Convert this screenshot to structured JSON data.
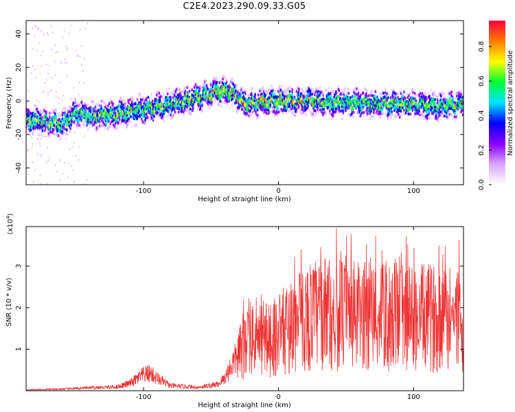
{
  "title": "C2E4.2023.290.09.33.G05",
  "chart_data": [
    {
      "type": "heatmap",
      "panel": "spectrogram",
      "xlabel": "Height of straight line (km)",
      "ylabel": "Frequency (Hz)",
      "xlim": [
        -187,
        137
      ],
      "ylim": [
        -50,
        48
      ],
      "xticks": [
        -100,
        0,
        100
      ],
      "xtick_labels": [
        "-100",
        "0",
        "100"
      ],
      "yticks": [
        -40,
        -20,
        0,
        20,
        40
      ],
      "ytick_labels": [
        "-40",
        "-20",
        "0",
        "20",
        "40"
      ],
      "ridge": {
        "x": [
          -187,
          -160,
          -150,
          -140,
          -120,
          -100,
          -80,
          -60,
          -45,
          -35,
          -25,
          -15,
          0,
          20,
          40,
          60,
          80,
          100,
          120,
          137
        ],
        "frequency": [
          -11,
          -14,
          -7,
          -9,
          -8,
          -5,
          -2,
          2,
          6,
          5,
          -2,
          -1,
          0,
          0,
          -1,
          -1,
          -2,
          -2,
          -3,
          -2
        ]
      },
      "colorbar": {
        "label": "Normalized spectral amplitude",
        "range": [
          0,
          0.95
        ],
        "ticks": [
          0.0,
          0.2,
          0.4,
          0.6,
          0.8
        ],
        "tick_labels": [
          "0.0",
          "0.2",
          "0.4",
          "0.6",
          "0.8"
        ],
        "colormap": [
          "#ffffff",
          "#d9a6ff",
          "#8a00ff",
          "#0000ff",
          "#00e5ff",
          "#00ff33",
          "#ffff00",
          "#ff7a00",
          "#ff0040"
        ]
      }
    },
    {
      "type": "line",
      "panel": "snr",
      "xlabel": "Height of straight line (km)",
      "ylabel": "SNR (10 * v/v)",
      "y_scale_note": "(x10",
      "y_scale_exp": "4",
      "xlim": [
        -187,
        137
      ],
      "ylim": [
        0,
        3.95
      ],
      "xticks": [
        -100,
        0,
        100
      ],
      "xtick_labels": [
        "-100",
        "0",
        "100"
      ],
      "yticks": [
        1,
        2,
        3
      ],
      "ytick_labels": [
        "1",
        "2",
        "3"
      ],
      "color": "#ee3333",
      "envelope": {
        "x": [
          -187,
          -160,
          -140,
          -120,
          -110,
          -100,
          -95,
          -90,
          -80,
          -60,
          -45,
          -40,
          -35,
          -30,
          -25,
          -20,
          -15,
          -10,
          -5,
          0,
          10,
          20,
          30,
          40,
          50,
          60,
          70,
          80,
          90,
          100,
          110,
          120,
          137
        ],
        "snr": [
          0.02,
          0.04,
          0.07,
          0.09,
          0.18,
          0.38,
          0.42,
          0.3,
          0.12,
          0.08,
          0.15,
          0.3,
          0.6,
          0.85,
          1.1,
          1.25,
          1.2,
          1.25,
          1.3,
          1.35,
          1.55,
          1.75,
          1.85,
          1.85,
          1.8,
          1.8,
          1.8,
          1.75,
          1.8,
          1.75,
          1.75,
          1.75,
          1.7
        ]
      }
    }
  ]
}
